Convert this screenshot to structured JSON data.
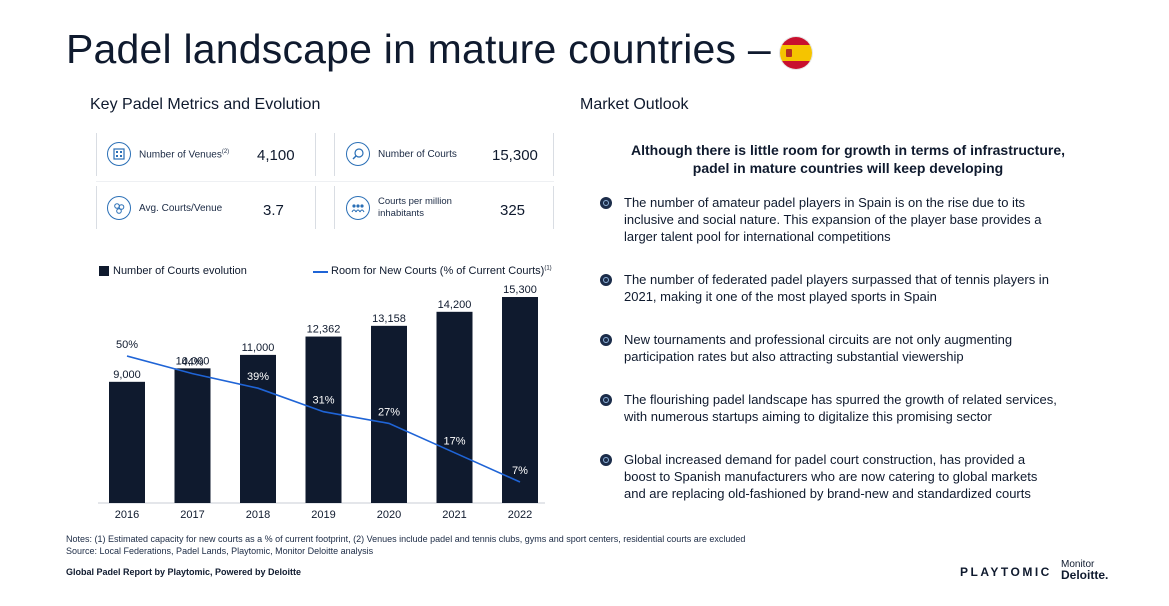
{
  "title": "Padel landscape in mature countries –",
  "left_heading": "Key Padel Metrics and Evolution",
  "right_heading": "Market Outlook",
  "metrics": [
    {
      "label": "Number of Venues",
      "sup": "(2)",
      "value": "4,100",
      "icon": "grid-building-icon"
    },
    {
      "label": "Number of Courts",
      "value": "15,300",
      "icon": "racket-icon"
    },
    {
      "label": "Avg. Courts/Venue",
      "value": "3.7",
      "icon": "balls-icon"
    },
    {
      "label_line1": "Courts per million",
      "label_line2": "inhabitants",
      "value": "325",
      "icon": "people-icon"
    }
  ],
  "chart_data": {
    "type": "bar",
    "categories": [
      "2016",
      "2017",
      "2018",
      "2019",
      "2020",
      "2021",
      "2022"
    ],
    "series": [
      {
        "name": "Number of Courts evolution",
        "type": "bar",
        "values": [
          9000,
          10000,
          11000,
          12362,
          13158,
          14200,
          15300
        ],
        "labels": [
          "9,000",
          "10,000",
          "11,000",
          "12,362",
          "13,158",
          "14,200",
          "15,300"
        ],
        "color": "#0f1a2e"
      },
      {
        "name": "Room for New Courts (% of Current Courts)",
        "name_sup": "(1)",
        "type": "line",
        "values": [
          50,
          44,
          39,
          31,
          27,
          17,
          7
        ],
        "labels": [
          "50%",
          "44%",
          "39%",
          "31%",
          "27%",
          "17%",
          "7%"
        ],
        "color": "#1f64d6"
      }
    ],
    "ylim": [
      0,
      15300
    ]
  },
  "outlook": {
    "headline_line1": "Although there is little room for growth in terms of infrastructure,",
    "headline_line2": "padel in mature countries will keep developing",
    "bullets": [
      {
        "line1": "The number of amateur padel players in Spain is on the rise due to its",
        "line2": "inclusive and social nature. This expansion of the player base provides a",
        "line3": "larger talent pool for international competitions"
      },
      {
        "line1": "The number of federated padel players surpassed that of tennis players in",
        "line2": "2021, making it one of the most played sports in Spain"
      },
      {
        "line1": "New tournaments and professional circuits are not only augmenting",
        "line2": "participation rates but also attracting substantial viewership"
      },
      {
        "line1": "The flourishing padel landscape has spurred the growth of related services,",
        "line2": "with numerous startups aiming to digitalize this promising sector"
      },
      {
        "line1": "Global increased demand for padel court construction, has provided a",
        "line2": "boost to Spanish manufacturers who are now catering to global markets",
        "line3": "and are replacing old-fashioned by brand-new and standardized courts"
      }
    ]
  },
  "notes": {
    "line1": "Notes: (1) Estimated capacity for new courts as a % of current footprint, (2) Venues include padel and tennis clubs, gyms and sport centers, residential courts are excluded",
    "line2": "Source: Local Federations, Padel Lands, Playtomic, Monitor Deloitte analysis"
  },
  "footer": "Global Padel Report by Playtomic, Powered by Deloitte",
  "brand": {
    "playtomic": "PLAYTOMIC",
    "monitor": "Monitor",
    "deloitte": "Deloitte."
  }
}
